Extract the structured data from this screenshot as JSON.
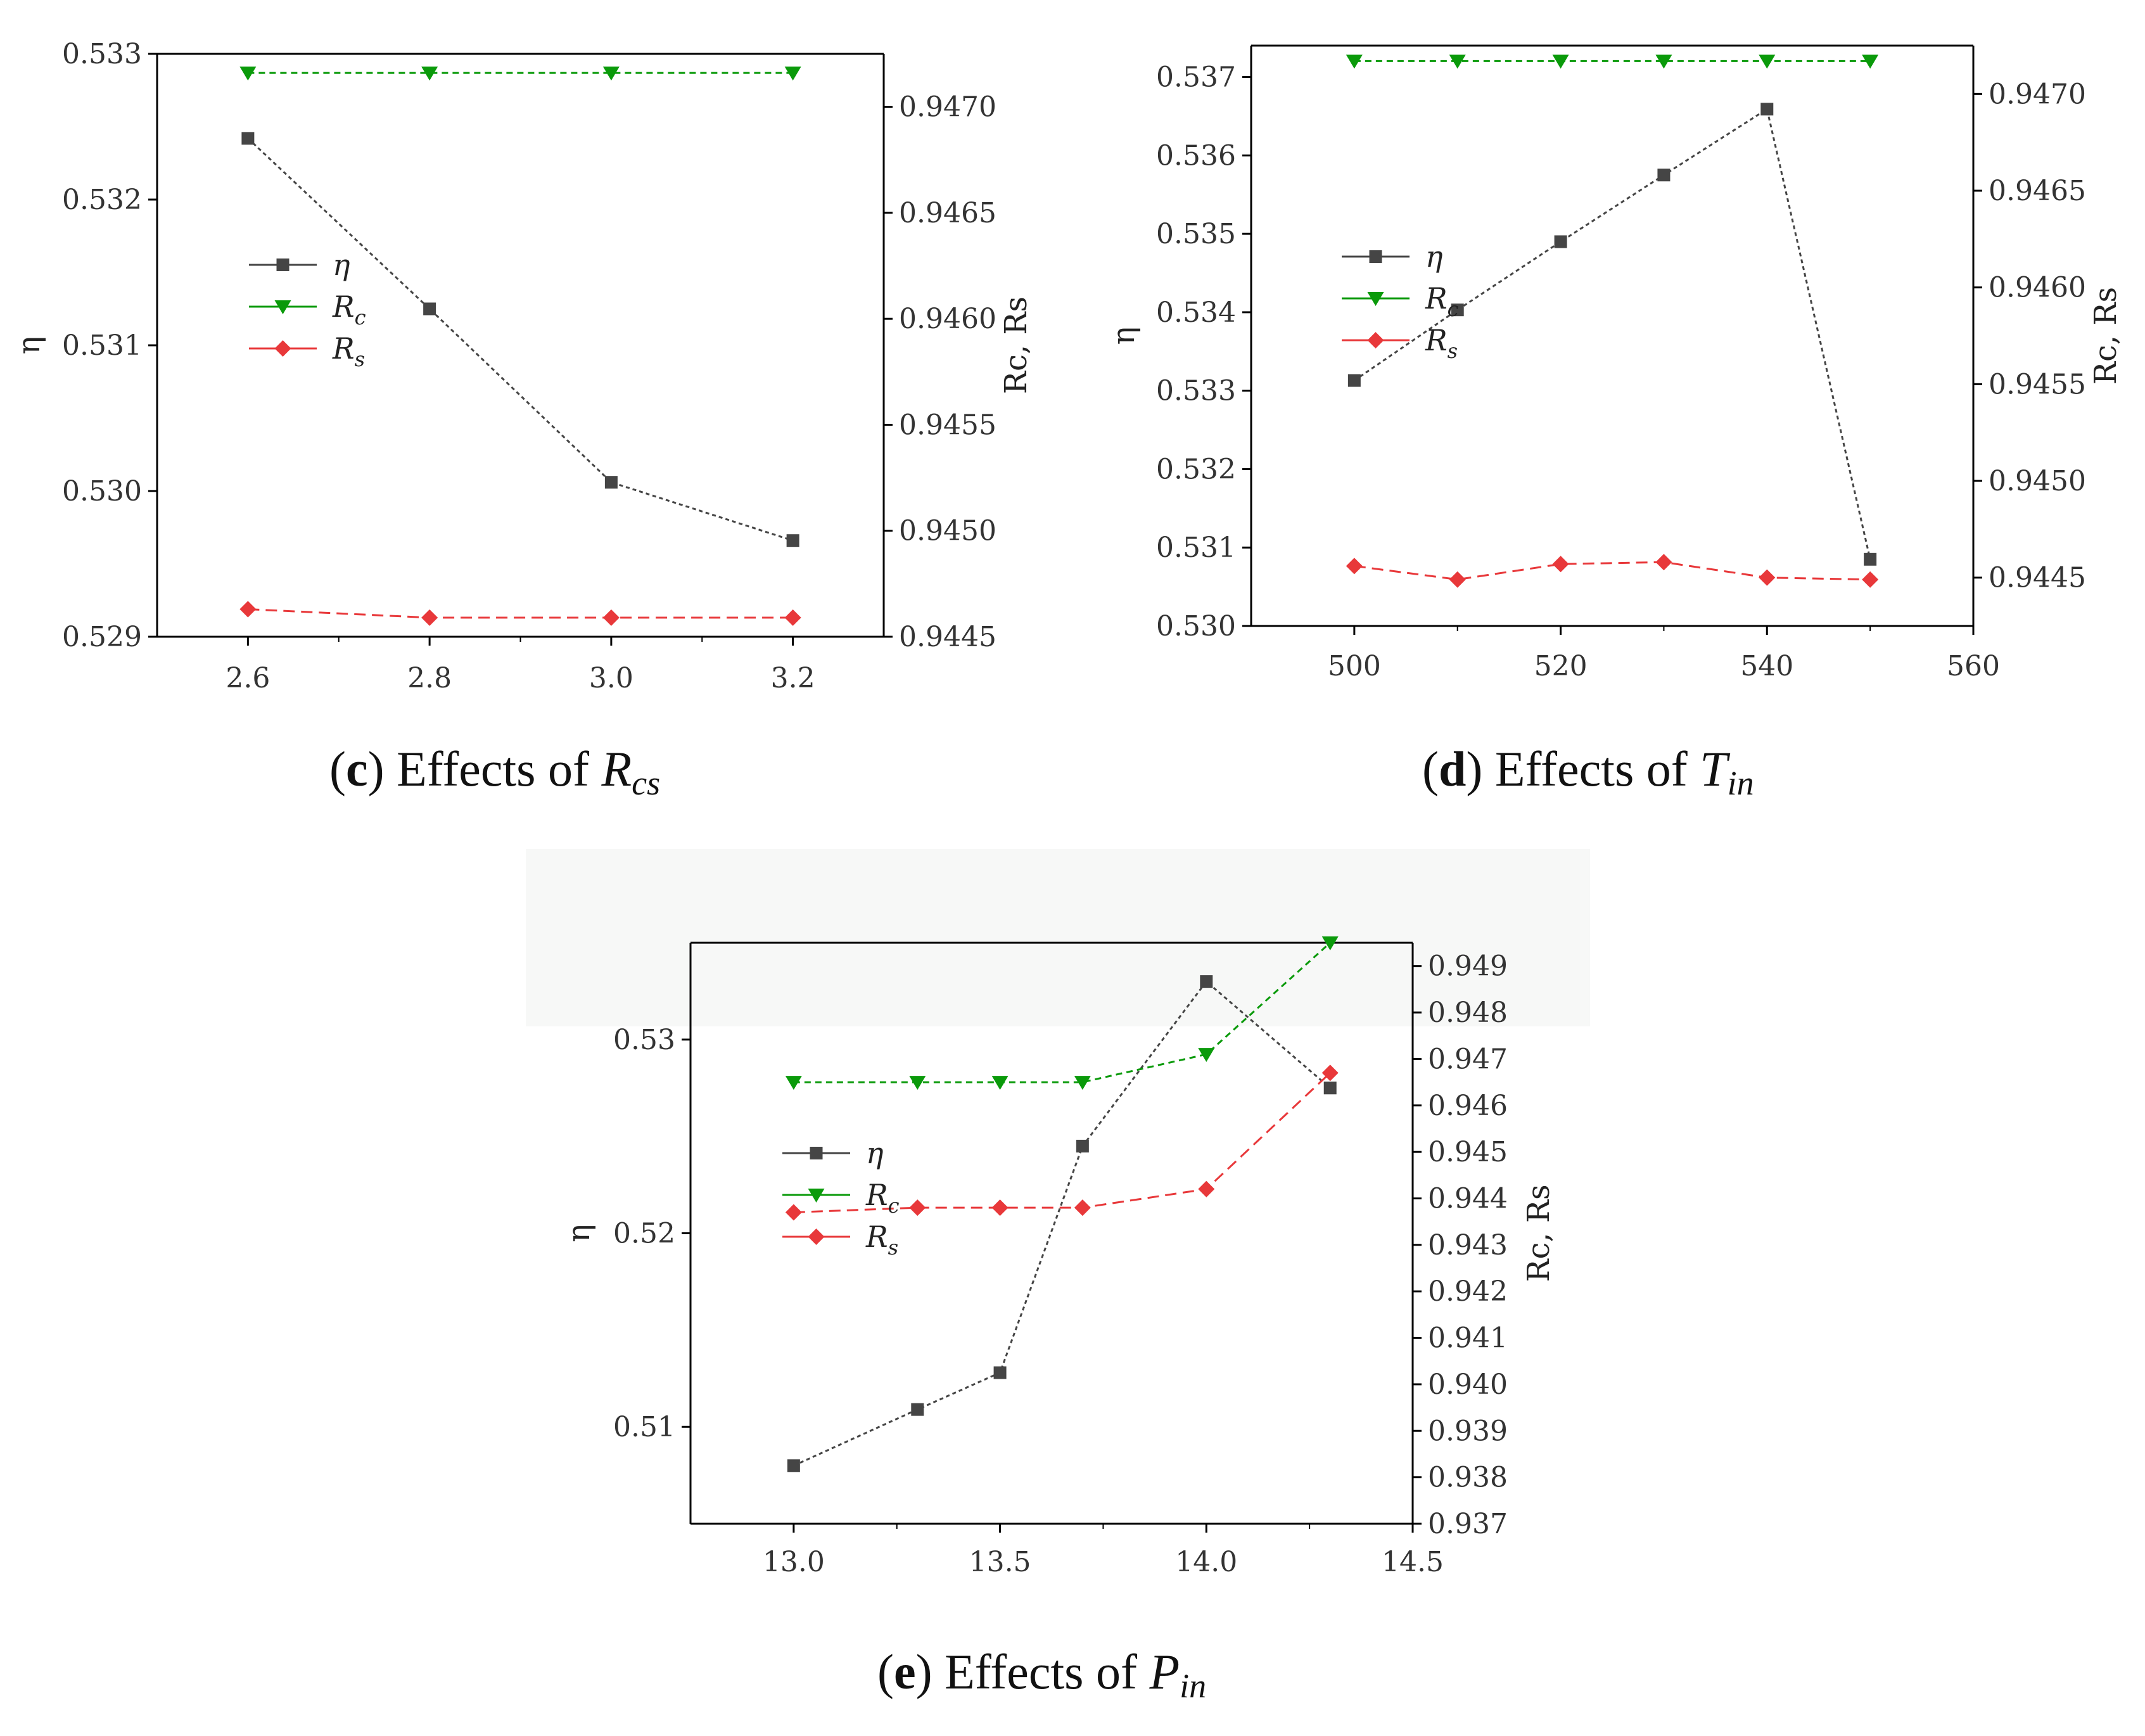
{
  "colors": {
    "eta": "#454545",
    "rc": "#0a9a0a",
    "rs": "#e8383a",
    "axis": "#000000"
  },
  "chart_data": [
    {
      "id": "c",
      "type": "line",
      "caption": {
        "letter": "c",
        "text": "Effects of ",
        "var": "R",
        "sub": "cs"
      },
      "x": [
        2.6,
        2.8,
        3.0,
        3.2
      ],
      "xlim": [
        2.5,
        3.3
      ],
      "xticks": [
        "2.6",
        "2.8",
        "3.0",
        "3.2"
      ],
      "xtick_values": [
        2.6,
        2.8,
        3.0,
        3.2
      ],
      "y_left": {
        "label": "η",
        "lim": [
          0.529,
          0.533
        ],
        "ticks": [
          "0.529",
          "0.530",
          "0.531",
          "0.532",
          "0.533"
        ],
        "tick_values": [
          0.529,
          0.53,
          0.531,
          0.532,
          0.533
        ]
      },
      "y_right": {
        "label": "Rc, Rs",
        "lim": [
          0.9445,
          0.94725
        ],
        "ticks": [
          "0.9445",
          "0.9450",
          "0.9455",
          "0.9460",
          "0.9465",
          "0.9470"
        ],
        "tick_values": [
          0.9445,
          0.945,
          0.9455,
          0.946,
          0.9465,
          0.947
        ]
      },
      "series": [
        {
          "name": "η",
          "axis": "left",
          "marker": "square",
          "values": [
            0.53242,
            0.53125,
            0.53006,
            0.52966
          ]
        },
        {
          "name": "Rc",
          "axis": "right",
          "marker": "triangle-down",
          "values": [
            0.94716,
            0.94716,
            0.94716,
            0.94716
          ]
        },
        {
          "name": "Rs",
          "axis": "right",
          "marker": "diamond",
          "values": [
            0.94463,
            0.94459,
            0.94459,
            0.94459
          ]
        }
      ],
      "legend": [
        {
          "label": "η",
          "sub": ""
        },
        {
          "label": "R",
          "sub": "c"
        },
        {
          "label": "R",
          "sub": "s"
        }
      ]
    },
    {
      "id": "d",
      "type": "line",
      "caption": {
        "letter": "d",
        "text": "Effects of ",
        "var": "T",
        "sub": "in"
      },
      "x": [
        500,
        510,
        520,
        530,
        540,
        550
      ],
      "xlim": [
        490,
        560
      ],
      "xticks": [
        "500",
        "520",
        "540",
        "560"
      ],
      "xtick_values": [
        500,
        520,
        540,
        560
      ],
      "y_left": {
        "label": "η",
        "lim": [
          0.53,
          0.5374
        ],
        "ticks": [
          "0.530",
          "0.531",
          "0.532",
          "0.533",
          "0.534",
          "0.535",
          "0.536",
          "0.537"
        ],
        "tick_values": [
          0.53,
          0.531,
          0.532,
          0.533,
          0.534,
          0.535,
          0.536,
          0.537
        ]
      },
      "y_right": {
        "label": "Rc, Rs",
        "lim": [
          0.94425,
          0.94725
        ],
        "ticks": [
          "0.9445",
          "0.9450",
          "0.9455",
          "0.9460",
          "0.9465",
          "0.9470"
        ],
        "tick_values": [
          0.9445,
          0.945,
          0.9455,
          0.946,
          0.9465,
          0.947
        ]
      },
      "series": [
        {
          "name": "η",
          "axis": "left",
          "marker": "square",
          "values": [
            0.53313,
            0.53403,
            0.5349,
            0.53575,
            0.53659,
            0.53085
          ]
        },
        {
          "name": "Rc",
          "axis": "right",
          "marker": "triangle-down",
          "values": [
            0.94717,
            0.94717,
            0.94717,
            0.94717,
            0.94717,
            0.94717
          ]
        },
        {
          "name": "Rs",
          "axis": "right",
          "marker": "diamond",
          "values": [
            0.94456,
            0.94449,
            0.94457,
            0.94458,
            0.9445,
            0.94449
          ]
        }
      ],
      "legend": [
        {
          "label": "η",
          "sub": ""
        },
        {
          "label": "R",
          "sub": "c"
        },
        {
          "label": "R",
          "sub": "s"
        }
      ]
    },
    {
      "id": "e",
      "type": "line",
      "caption": {
        "letter": "e",
        "text": "Effects of ",
        "var": "P",
        "sub": "in"
      },
      "x": [
        13.0,
        13.3,
        13.5,
        13.7,
        14.0,
        14.3
      ],
      "xlim": [
        12.75,
        14.5
      ],
      "xticks": [
        "13.0",
        "13.5",
        "14.0",
        "14.5"
      ],
      "xtick_values": [
        13.0,
        13.5,
        14.0,
        14.5
      ],
      "y_left": {
        "label": "η",
        "lim": [
          0.505,
          0.535
        ],
        "ticks": [
          "0.51",
          "0.52",
          "0.53"
        ],
        "tick_values": [
          0.51,
          0.52,
          0.53
        ]
      },
      "y_right": {
        "label": "Rc, Rs",
        "lim": [
          0.937,
          0.9495
        ],
        "ticks": [
          "0.937",
          "0.938",
          "0.939",
          "0.940",
          "0.941",
          "0.942",
          "0.943",
          "0.944",
          "0.945",
          "0.946",
          "0.947",
          "0.948",
          "0.949"
        ],
        "tick_values": [
          0.937,
          0.938,
          0.939,
          0.94,
          0.941,
          0.942,
          0.943,
          0.944,
          0.945,
          0.946,
          0.947,
          0.948,
          0.949
        ]
      },
      "series": [
        {
          "name": "η",
          "axis": "left",
          "marker": "square",
          "values": [
            0.508,
            0.5109,
            0.5128,
            0.5245,
            0.533,
            0.5275
          ]
        },
        {
          "name": "Rc",
          "axis": "right",
          "marker": "triangle-down",
          "values": [
            0.9465,
            0.9465,
            0.9465,
            0.9465,
            0.9471,
            0.9495
          ]
        },
        {
          "name": "Rs",
          "axis": "right",
          "marker": "diamond",
          "values": [
            0.9437,
            0.9438,
            0.9438,
            0.9438,
            0.9442,
            0.9467
          ]
        }
      ],
      "legend": [
        {
          "label": "η",
          "sub": ""
        },
        {
          "label": "R",
          "sub": "c"
        },
        {
          "label": "R",
          "sub": "s"
        }
      ]
    }
  ]
}
